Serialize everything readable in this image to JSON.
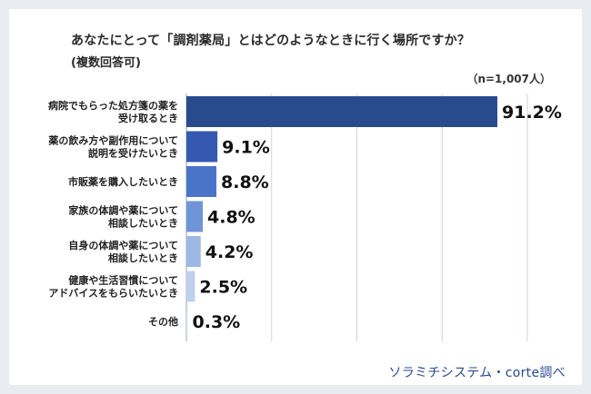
{
  "title": "あなたにとって「調剤薬局」とはどのようなときに行く場所ですか？",
  "subtitle": "(複数回答可)",
  "sample_note": "（n=1,007人）",
  "credit": "ソラミチシステム・corte調べ",
  "chart_data": {
    "type": "bar",
    "orientation": "horizontal",
    "title": "あなたにとって「調剤薬局」とはどのようなときに行く場所ですか？",
    "subtitle": "(複数回答可)",
    "categories": [
      [
        "病院でもらった処方箋の薬を",
        "受け取るとき"
      ],
      [
        "薬の飲み方や副作用について",
        "説明を受けたいとき"
      ],
      [
        "市販薬を購入したいとき"
      ],
      [
        "家族の体調や薬について",
        "相談したいとき"
      ],
      [
        "自身の体調や薬について",
        "相談したいとき"
      ],
      [
        "健康や生活習慣について",
        "アドバイスをもらいたいとき"
      ],
      [
        "その他"
      ]
    ],
    "values": [
      91.2,
      9.1,
      8.8,
      4.8,
      4.2,
      2.5,
      0.3
    ],
    "value_labels": [
      "91.2%",
      "9.1%",
      "8.8%",
      "4.8%",
      "4.2%",
      "2.5%",
      "0.3%"
    ],
    "bar_colors": [
      "#2a4a8e",
      "#3559b0",
      "#4a74c8",
      "#6f95d6",
      "#9db8e3",
      "#bfd0ee",
      "#d6e0f4"
    ],
    "xlim": [
      0,
      100
    ],
    "grid": true
  }
}
